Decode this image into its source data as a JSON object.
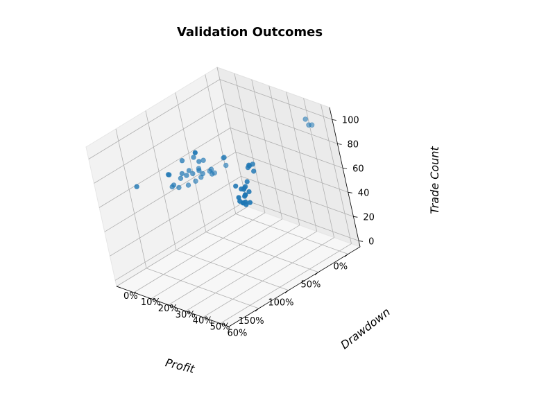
{
  "chart_data": {
    "type": "scatter",
    "title": "Validation Outcomes",
    "xlabel": "Profit",
    "ylabel": "Drawdown",
    "zlabel": "Trade Count",
    "x_ticks": [
      "0%",
      "50%",
      "100%",
      "150%"
    ],
    "y_ticks": [
      "0%",
      "10%",
      "20%",
      "30%",
      "40%",
      "50%",
      "60%"
    ],
    "z_ticks": [
      "0",
      "20",
      "40",
      "60",
      "80",
      "100"
    ],
    "grid": true,
    "color": "#1f77b4",
    "points": [
      {
        "x": -0.12,
        "y": 0.01,
        "z": 1
      },
      {
        "x": -0.1,
        "y": 0.02,
        "z": 2
      },
      {
        "x": -0.11,
        "y": 0.03,
        "z": 3
      },
      {
        "x": -0.09,
        "y": 0.04,
        "z": 2
      },
      {
        "x": -0.13,
        "y": 0.05,
        "z": 3
      },
      {
        "x": -0.05,
        "y": 0.02,
        "z": 8
      },
      {
        "x": -0.03,
        "y": 0.03,
        "z": 6
      },
      {
        "x": -0.07,
        "y": 0.05,
        "z": 10
      },
      {
        "x": -0.06,
        "y": 0.06,
        "z": 12
      },
      {
        "x": -0.04,
        "y": 0.07,
        "z": 13
      },
      {
        "x": -0.08,
        "y": 0.08,
        "z": 15
      },
      {
        "x": -0.02,
        "y": 0.06,
        "z": 18
      },
      {
        "x": -0.01,
        "y": 0.08,
        "z": 19
      },
      {
        "x": 0.0,
        "y": 0.09,
        "z": 21
      },
      {
        "x": 0.03,
        "y": 0.11,
        "z": 24
      },
      {
        "x": 0.01,
        "y": 0.12,
        "z": 28
      },
      {
        "x": 0.1,
        "y": 0.08,
        "z": 25
      },
      {
        "x": 0.02,
        "y": 0.18,
        "z": 40
      },
      {
        "x": 0.07,
        "y": 0.17,
        "z": 44
      },
      {
        "x": 0.09,
        "y": 0.19,
        "z": 47
      },
      {
        "x": 0.06,
        "y": 0.2,
        "z": 48
      },
      {
        "x": 0.12,
        "y": 0.2,
        "z": 49
      },
      {
        "x": -0.04,
        "y": 0.55,
        "z": 100
      },
      {
        "x": 0.0,
        "y": 0.58,
        "z": 98
      },
      {
        "x": 0.0,
        "y": 0.6,
        "z": 99
      },
      {
        "x": 0.45,
        "y": 0.02,
        "z": 60
      },
      {
        "x": 1.2,
        "y": 0.35,
        "z": 92
      },
      {
        "x": 1.25,
        "y": 0.4,
        "z": 97
      },
      {
        "x": 1.22,
        "y": 0.33,
        "z": 95
      },
      {
        "x": 1.3,
        "y": 0.38,
        "z": 89
      },
      {
        "x": 1.35,
        "y": 0.42,
        "z": 90
      },
      {
        "x": 1.28,
        "y": 0.45,
        "z": 93
      },
      {
        "x": 1.4,
        "y": 0.36,
        "z": 91
      },
      {
        "x": 1.33,
        "y": 0.3,
        "z": 94
      },
      {
        "x": 1.38,
        "y": 0.48,
        "z": 96
      },
      {
        "x": 1.26,
        "y": 0.44,
        "z": 88
      },
      {
        "x": 1.45,
        "y": 0.4,
        "z": 92
      },
      {
        "x": 1.42,
        "y": 0.32,
        "z": 87
      },
      {
        "x": 1.5,
        "y": 0.38,
        "z": 91
      },
      {
        "x": 1.48,
        "y": 0.46,
        "z": 93
      },
      {
        "x": 1.36,
        "y": 0.5,
        "z": 95
      },
      {
        "x": 1.55,
        "y": 0.36,
        "z": 89
      },
      {
        "x": 1.6,
        "y": 0.42,
        "z": 88
      },
      {
        "x": 1.52,
        "y": 0.28,
        "z": 87
      },
      {
        "x": 1.58,
        "y": 0.3,
        "z": 90
      },
      {
        "x": 1.65,
        "y": 0.35,
        "z": 86
      },
      {
        "x": 1.7,
        "y": 0.4,
        "z": 88
      },
      {
        "x": 1.18,
        "y": 0.5,
        "z": 102
      },
      {
        "x": 1.05,
        "y": 0.45,
        "z": 96
      },
      {
        "x": 1.62,
        "y": 0.48,
        "z": 95
      },
      {
        "x": 1.75,
        "y": 0.38,
        "z": 89
      },
      {
        "x": 1.85,
        "y": 0.2,
        "z": 83
      },
      {
        "x": 1.44,
        "y": 0.44,
        "z": 98
      },
      {
        "x": 1.12,
        "y": 0.48,
        "z": 93
      }
    ]
  }
}
